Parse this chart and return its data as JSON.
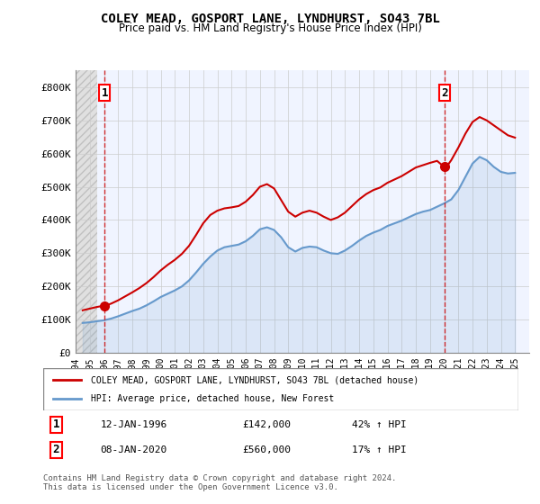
{
  "title": "COLEY MEAD, GOSPORT LANE, LYNDHURST, SO43 7BL",
  "subtitle": "Price paid vs. HM Land Registry's House Price Index (HPI)",
  "legend_line1": "COLEY MEAD, GOSPORT LANE, LYNDHURST, SO43 7BL (detached house)",
  "legend_line2": "HPI: Average price, detached house, New Forest",
  "annotation1_label": "1",
  "annotation1_date": "12-JAN-1996",
  "annotation1_price": "£142,000",
  "annotation1_hpi": "42% ↑ HPI",
  "annotation2_label": "2",
  "annotation2_date": "08-JAN-2020",
  "annotation2_price": "£560,000",
  "annotation2_hpi": "17% ↑ HPI",
  "footnote": "Contains HM Land Registry data © Crown copyright and database right 2024.\nThis data is licensed under the Open Government Licence v3.0.",
  "price_color": "#cc0000",
  "hpi_color": "#6699cc",
  "background_hatch_color": "#e8e8e8",
  "grid_color": "#cccccc",
  "ylim": [
    0,
    850000
  ],
  "yticks": [
    0,
    100000,
    200000,
    300000,
    400000,
    500000,
    600000,
    700000,
    800000
  ],
  "ytick_labels": [
    "£0",
    "£100K",
    "£200K",
    "£300K",
    "£400K",
    "£500K",
    "£600K",
    "£700K",
    "£800K"
  ],
  "xlim_start": 1994.0,
  "xlim_end": 2026.0,
  "xticks": [
    1994,
    1995,
    1996,
    1997,
    1998,
    1999,
    2000,
    2001,
    2002,
    2003,
    2004,
    2005,
    2006,
    2007,
    2008,
    2009,
    2010,
    2011,
    2012,
    2013,
    2014,
    2015,
    2016,
    2017,
    2018,
    2019,
    2020,
    2021,
    2022,
    2023,
    2024,
    2025
  ],
  "sale1_x": 1996.04,
  "sale1_y": 142000,
  "sale2_x": 2020.04,
  "sale2_y": 560000,
  "hpi_years": [
    1994.5,
    1995.0,
    1995.5,
    1996.0,
    1996.5,
    1997.0,
    1997.5,
    1998.0,
    1998.5,
    1999.0,
    1999.5,
    2000.0,
    2000.5,
    2001.0,
    2001.5,
    2002.0,
    2002.5,
    2003.0,
    2003.5,
    2004.0,
    2004.5,
    2005.0,
    2005.5,
    2006.0,
    2006.5,
    2007.0,
    2007.5,
    2008.0,
    2008.5,
    2009.0,
    2009.5,
    2010.0,
    2010.5,
    2011.0,
    2011.5,
    2012.0,
    2012.5,
    2013.0,
    2013.5,
    2014.0,
    2014.5,
    2015.0,
    2015.5,
    2016.0,
    2016.5,
    2017.0,
    2017.5,
    2018.0,
    2018.5,
    2019.0,
    2019.5,
    2020.0,
    2020.5,
    2021.0,
    2021.5,
    2022.0,
    2022.5,
    2023.0,
    2023.5,
    2024.0,
    2024.5,
    2025.0
  ],
  "hpi_values": [
    90000,
    92000,
    95000,
    98000,
    103000,
    110000,
    118000,
    126000,
    133000,
    143000,
    155000,
    168000,
    178000,
    188000,
    200000,
    218000,
    242000,
    268000,
    290000,
    308000,
    318000,
    322000,
    326000,
    336000,
    352000,
    372000,
    378000,
    370000,
    348000,
    318000,
    305000,
    316000,
    320000,
    318000,
    308000,
    300000,
    298000,
    308000,
    322000,
    338000,
    352000,
    362000,
    370000,
    382000,
    390000,
    398000,
    408000,
    418000,
    425000,
    430000,
    440000,
    450000,
    462000,
    490000,
    530000,
    570000,
    590000,
    580000,
    560000,
    545000,
    540000,
    542000
  ],
  "price_years": [
    1994.5,
    1995.0,
    1995.5,
    1996.0,
    1996.3,
    1996.5,
    1997.0,
    1997.5,
    1998.0,
    1998.5,
    1999.0,
    1999.5,
    2000.0,
    2000.5,
    2001.0,
    2001.5,
    2002.0,
    2002.5,
    2003.0,
    2003.5,
    2004.0,
    2004.5,
    2005.0,
    2005.5,
    2006.0,
    2006.5,
    2007.0,
    2007.5,
    2008.0,
    2008.5,
    2009.0,
    2009.5,
    2010.0,
    2010.5,
    2011.0,
    2011.5,
    2012.0,
    2012.5,
    2013.0,
    2013.5,
    2014.0,
    2014.5,
    2015.0,
    2015.5,
    2016.0,
    2016.5,
    2017.0,
    2017.5,
    2018.0,
    2018.5,
    2019.0,
    2019.5,
    2020.0,
    2020.3,
    2020.5,
    2021.0,
    2021.5,
    2022.0,
    2022.5,
    2023.0,
    2023.5,
    2024.0,
    2024.5,
    2025.0
  ],
  "price_values": [
    128000,
    133000,
    138000,
    142000,
    145000,
    148000,
    158000,
    170000,
    182000,
    195000,
    210000,
    228000,
    248000,
    265000,
    280000,
    298000,
    322000,
    355000,
    390000,
    415000,
    428000,
    435000,
    438000,
    442000,
    455000,
    475000,
    500000,
    508000,
    495000,
    460000,
    425000,
    410000,
    422000,
    428000,
    422000,
    410000,
    400000,
    408000,
    422000,
    442000,
    462000,
    478000,
    490000,
    498000,
    512000,
    522000,
    532000,
    545000,
    558000,
    565000,
    572000,
    578000,
    560000,
    568000,
    580000,
    618000,
    660000,
    695000,
    710000,
    700000,
    685000,
    670000,
    655000,
    648000
  ]
}
